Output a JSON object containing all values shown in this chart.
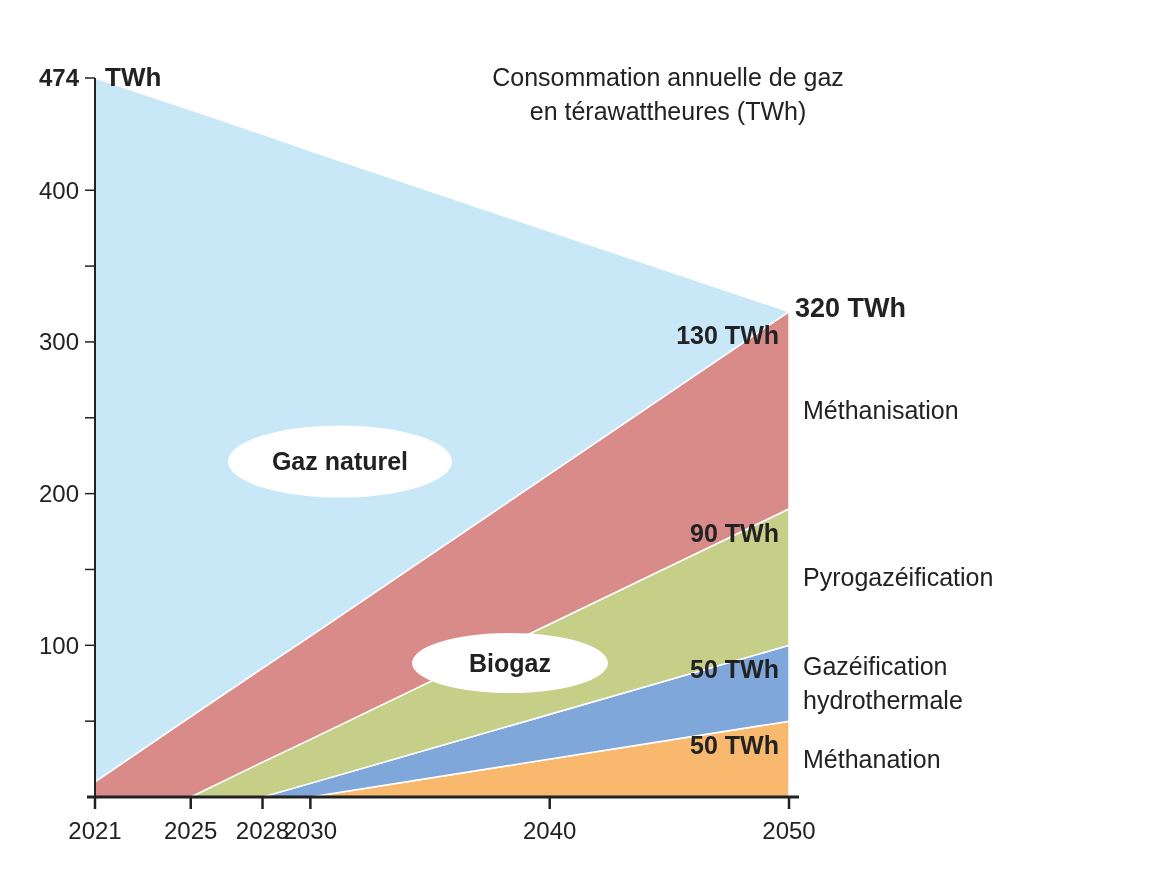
{
  "chart_data": {
    "type": "area",
    "stacked": true,
    "title": "Consommation annuelle de gaz en térawattheures (TWh)",
    "ylabel": "TWh",
    "x": [
      2021,
      2025,
      2028,
      2030,
      2050
    ],
    "xlim": [
      2021,
      2050
    ],
    "xticks": [
      2021,
      2025,
      2028,
      2030,
      2040,
      2050
    ],
    "ylim": [
      0,
      474
    ],
    "yticks": [
      {
        "value": 50,
        "label": null
      },
      100,
      {
        "value": 150,
        "label": null
      },
      200,
      {
        "value": 250,
        "label": null
      },
      300,
      {
        "value": 350,
        "label": null
      },
      400,
      {
        "value": 474,
        "label": "474"
      }
    ],
    "grid": false,
    "legend": false,
    "series": [
      {
        "name": "Méthanation",
        "color": "#f8b96e",
        "values": [
          0,
          0,
          0,
          0,
          50
        ],
        "value_labels": [
          null,
          null,
          null,
          null,
          "50 TWh"
        ]
      },
      {
        "name": "Gazéification hydrothermale",
        "color": "#7fa7da",
        "values": [
          0,
          0,
          0,
          9,
          50
        ],
        "value_labels": [
          null,
          null,
          null,
          null,
          "50 TWh"
        ]
      },
      {
        "name": "Pyrogazéification",
        "color": "#c6cf88",
        "values": [
          0,
          0,
          23,
          29,
          90
        ],
        "value_labels": [
          null,
          null,
          null,
          null,
          "90 TWh"
        ]
      },
      {
        "name": "Méthanisation",
        "color": "#d88b88",
        "values": [
          10,
          53,
          62,
          68,
          130
        ],
        "value_labels": [
          null,
          null,
          null,
          null,
          "130 TWh"
        ]
      },
      {
        "name": "Gaz naturel",
        "color": "#c8e8f8",
        "values": [
          464,
          400,
          352,
          320,
          0
        ]
      }
    ],
    "annotations": [
      {
        "text": "320 TWh",
        "x": 2050,
        "y": 320
      },
      "Biogaz"
    ]
  }
}
